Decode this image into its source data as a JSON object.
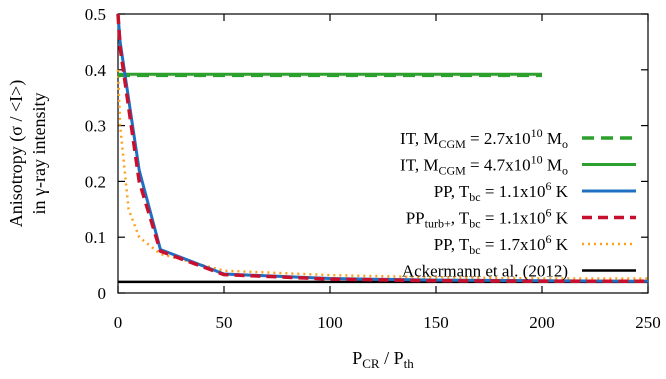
{
  "chart_data": {
    "type": "line",
    "xlabel": {
      "main": "P",
      "sub1": "CR",
      "mid": " / P",
      "sub2": "th"
    },
    "ylabel_line1": "Anisotropy (σ / <I>)",
    "ylabel_line2": "in γ-ray intensity",
    "xlim": [
      0,
      250
    ],
    "ylim": [
      0,
      0.5
    ],
    "xticks": [
      0,
      50,
      100,
      150,
      200,
      250
    ],
    "xtick_labels": [
      "0",
      "50",
      "100",
      "150",
      "200",
      "250"
    ],
    "yticks": [
      0,
      0.1,
      0.2,
      0.3,
      0.4,
      0.5
    ],
    "ytick_labels": [
      "0",
      "0.1",
      "0.2",
      "0.3",
      "0.4",
      "0.5"
    ],
    "grid": false,
    "legend_position": "top-right",
    "series": [
      {
        "name": "IT, M_CGM = 2.7x10^10 M_o",
        "legend": [
          {
            "t": "IT, M"
          },
          {
            "t": "CGM",
            "s": "sub"
          },
          {
            "t": " = 2.7x10"
          },
          {
            "t": "10",
            "s": "sup"
          },
          {
            "t": " M"
          },
          {
            "t": "o",
            "s": "sub"
          }
        ],
        "color": "#2ca02c",
        "dash": "12,7",
        "width": 3.5,
        "x": [
          0,
          200
        ],
        "y": [
          0.39,
          0.39
        ]
      },
      {
        "name": "IT, M_CGM = 4.7x10^10 M_o",
        "legend": [
          {
            "t": "IT, M"
          },
          {
            "t": "CGM",
            "s": "sub"
          },
          {
            "t": " = 4.7x10"
          },
          {
            "t": "10",
            "s": "sup"
          },
          {
            "t": " M"
          },
          {
            "t": "o",
            "s": "sub"
          }
        ],
        "color": "#2ca02c",
        "dash": "",
        "width": 3,
        "x": [
          0,
          200
        ],
        "y": [
          0.392,
          0.392
        ]
      },
      {
        "name": "PP, T_bc = 1.1x10^6 K",
        "legend": [
          {
            "t": "PP, T"
          },
          {
            "t": "bc",
            "s": "sub"
          },
          {
            "t": " = 1.1x10"
          },
          {
            "t": "6",
            "s": "sup"
          },
          {
            "t": " K"
          }
        ],
        "color": "#1f6fc2",
        "dash": "",
        "width": 3,
        "x": [
          0,
          1,
          10,
          20,
          50,
          100,
          150,
          200,
          250
        ],
        "y": [
          0.5,
          0.45,
          0.22,
          0.078,
          0.034,
          0.026,
          0.023,
          0.022,
          0.021
        ]
      },
      {
        "name": "PP_turb+, T_bc = 1.1x10^6 K",
        "legend": [
          {
            "t": "PP"
          },
          {
            "t": "turb+",
            "s": "sub"
          },
          {
            "t": ", T"
          },
          {
            "t": "bc",
            "s": "sub"
          },
          {
            "t": " = 1.1x10"
          },
          {
            "t": "6",
            "s": "sup"
          },
          {
            "t": " K"
          }
        ],
        "color": "#c8102e",
        "dash": "10,6",
        "width": 3.5,
        "x": [
          0,
          1,
          10,
          20,
          50,
          100,
          150,
          200,
          250
        ],
        "y": [
          0.5,
          0.44,
          0.2,
          0.075,
          0.033,
          0.025,
          0.022,
          0.021,
          0.021
        ]
      },
      {
        "name": "PP, T_bc = 1.7x10^6 K",
        "legend": [
          {
            "t": "PP, T"
          },
          {
            "t": "bc",
            "s": "sub"
          },
          {
            "t": " = 1.7x10"
          },
          {
            "t": "6",
            "s": "sup"
          },
          {
            "t": " K"
          }
        ],
        "color": "#ff9f1c",
        "dash": "2,4",
        "width": 2.5,
        "x": [
          0,
          1,
          5,
          10,
          20,
          50,
          100,
          150,
          200,
          250
        ],
        "y": [
          0.4,
          0.3,
          0.15,
          0.1,
          0.07,
          0.04,
          0.032,
          0.028,
          0.026,
          0.026
        ]
      },
      {
        "name": "Ackermann et al. (2012)",
        "legend": [
          {
            "t": "Ackermann et al. (2012)"
          }
        ],
        "color": "#000000",
        "dash": "",
        "width": 2.5,
        "x": [
          0,
          250
        ],
        "y": [
          0.02,
          0.02
        ]
      }
    ]
  }
}
